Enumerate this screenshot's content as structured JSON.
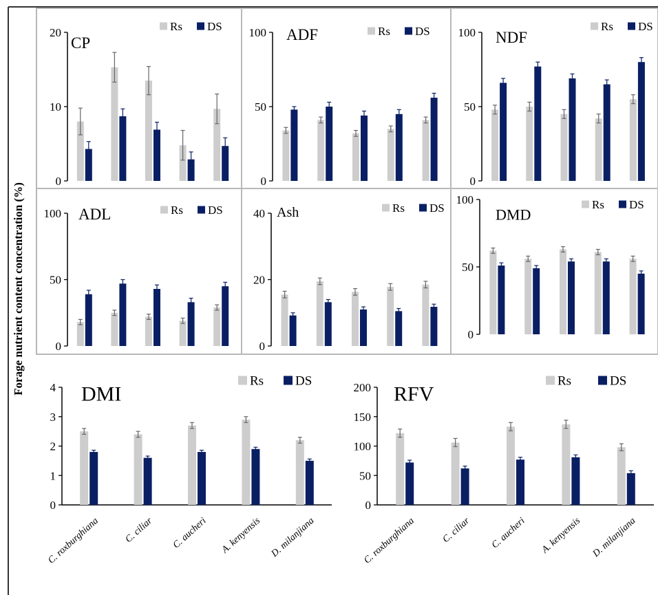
{
  "figure": {
    "ylabel": "Forage nutrient content concentration (%)"
  },
  "colors": {
    "Rs": "#cdcdcd",
    "DS": "#0a1f63",
    "error_bar": "#666666",
    "panel_border": "#b8b8b8",
    "axis": "#000000"
  },
  "chart_data": [
    {
      "type": "bar",
      "title": "CP",
      "ylim": [
        0,
        20
      ],
      "yticks": [
        0,
        10,
        20
      ],
      "legend": "top-right",
      "categories": [
        "C. roxburghiana",
        "C. ciliar",
        "C. aucheri",
        "A. kenyensis",
        "D. milanjiana"
      ],
      "series": [
        {
          "name": "Rs",
          "values": [
            8.0,
            15.3,
            13.5,
            4.8,
            9.7
          ],
          "errors": [
            1.8,
            2.0,
            1.9,
            2.0,
            2.0
          ]
        },
        {
          "name": "DS",
          "values": [
            4.3,
            8.7,
            6.9,
            2.9,
            4.7
          ],
          "errors": [
            1.0,
            1.0,
            1.0,
            1.0,
            1.1
          ]
        }
      ]
    },
    {
      "type": "bar",
      "title": "ADF",
      "ylim": [
        0,
        100
      ],
      "yticks": [
        0,
        50,
        100
      ],
      "legend": "top-right",
      "categories": [
        "C. roxburghiana",
        "C. ciliar",
        "C. aucheri",
        "A. kenyensis",
        "D. milanjiana"
      ],
      "series": [
        {
          "name": "Rs",
          "values": [
            34,
            41,
            32,
            35,
            41
          ],
          "errors": [
            2,
            2,
            2,
            2,
            2
          ]
        },
        {
          "name": "DS",
          "values": [
            48,
            50,
            44,
            45,
            56
          ],
          "errors": [
            2,
            3,
            3,
            3,
            3
          ]
        }
      ]
    },
    {
      "type": "bar",
      "title": "NDF",
      "ylim": [
        0,
        100
      ],
      "yticks": [
        0,
        50,
        100
      ],
      "legend": "top-right",
      "categories": [
        "C. roxburghiana",
        "C. ciliar",
        "C. aucheri",
        "A. kenyensis",
        "D. milanjiana"
      ],
      "series": [
        {
          "name": "Rs",
          "values": [
            48,
            50,
            45,
            42,
            55
          ],
          "errors": [
            3,
            3,
            3,
            3,
            3
          ]
        },
        {
          "name": "DS",
          "values": [
            66,
            77,
            69,
            65,
            80
          ],
          "errors": [
            3,
            3,
            3,
            3,
            3
          ]
        }
      ]
    },
    {
      "type": "bar",
      "title": "ADL",
      "ylim": [
        0,
        100
      ],
      "yticks": [
        0,
        50,
        100
      ],
      "legend": "top-right",
      "categories": [
        "C. roxburghiana",
        "C. ciliar",
        "C. aucheri",
        "A. kenyensis",
        "D. milanjiana"
      ],
      "series": [
        {
          "name": "Rs",
          "values": [
            18,
            25,
            22,
            19,
            29
          ],
          "errors": [
            2,
            2,
            2,
            2,
            2
          ]
        },
        {
          "name": "DS",
          "values": [
            39,
            47,
            43,
            33,
            45
          ],
          "errors": [
            3,
            3,
            3,
            3,
            3
          ]
        }
      ]
    },
    {
      "type": "bar",
      "title": "Ash",
      "ylim": [
        0,
        40
      ],
      "yticks": [
        0,
        20,
        40
      ],
      "legend": "top-right",
      "categories": [
        "C. roxburghiana",
        "C. ciliar",
        "C. aucheri",
        "A. kenyensis",
        "D. milanjiana"
      ],
      "series": [
        {
          "name": "Rs",
          "values": [
            15.5,
            19.5,
            16.3,
            17.8,
            18.5
          ],
          "errors": [
            1.0,
            1.0,
            1.0,
            1.0,
            1.0
          ]
        },
        {
          "name": "DS",
          "values": [
            9.2,
            13.2,
            11.0,
            10.5,
            11.8
          ],
          "errors": [
            0.8,
            0.8,
            0.8,
            0.8,
            0.8
          ]
        }
      ]
    },
    {
      "type": "bar",
      "title": "DMD",
      "ylim": [
        0,
        100
      ],
      "yticks": [
        0,
        50,
        100
      ],
      "legend": "top-right",
      "categories": [
        "C. roxburghiana",
        "C. ciliar",
        "C. aucheri",
        "A. kenyensis",
        "D. milanjiana"
      ],
      "series": [
        {
          "name": "Rs",
          "values": [
            62,
            56,
            63,
            61,
            56
          ],
          "errors": [
            2,
            2,
            2,
            2,
            2
          ]
        },
        {
          "name": "DS",
          "values": [
            51,
            49,
            54,
            54,
            45
          ],
          "errors": [
            2,
            2,
            2,
            2,
            2
          ]
        }
      ]
    },
    {
      "type": "bar",
      "title": "DMI",
      "ylim": [
        0,
        4
      ],
      "yticks": [
        0,
        1,
        2,
        3,
        4
      ],
      "legend": "top-right",
      "categories": [
        "C. roxburghiana",
        "C. ciliar",
        "C. aucheri",
        "A. kenyensis",
        "D. milanjiana"
      ],
      "series": [
        {
          "name": "Rs",
          "values": [
            2.5,
            2.4,
            2.7,
            2.9,
            2.2
          ],
          "errors": [
            0.1,
            0.1,
            0.1,
            0.1,
            0.1
          ]
        },
        {
          "name": "DS",
          "values": [
            1.8,
            1.6,
            1.8,
            1.9,
            1.5
          ],
          "errors": [
            0.06,
            0.06,
            0.06,
            0.06,
            0.06
          ]
        }
      ]
    },
    {
      "type": "bar",
      "title": "RFV",
      "ylim": [
        0,
        200
      ],
      "yticks": [
        0,
        50,
        100,
        150,
        200
      ],
      "legend": "top-right",
      "categories": [
        "C. roxburghiana",
        "C. ciliar",
        "C. aucheri",
        "A. kenyensis",
        "D. milanjiana"
      ],
      "series": [
        {
          "name": "Rs",
          "values": [
            122,
            106,
            133,
            137,
            98
          ],
          "errors": [
            7,
            7,
            7,
            7,
            6
          ]
        },
        {
          "name": "DS",
          "values": [
            72,
            62,
            77,
            81,
            54
          ],
          "errors": [
            4,
            4,
            4,
            4,
            4
          ]
        }
      ]
    }
  ]
}
